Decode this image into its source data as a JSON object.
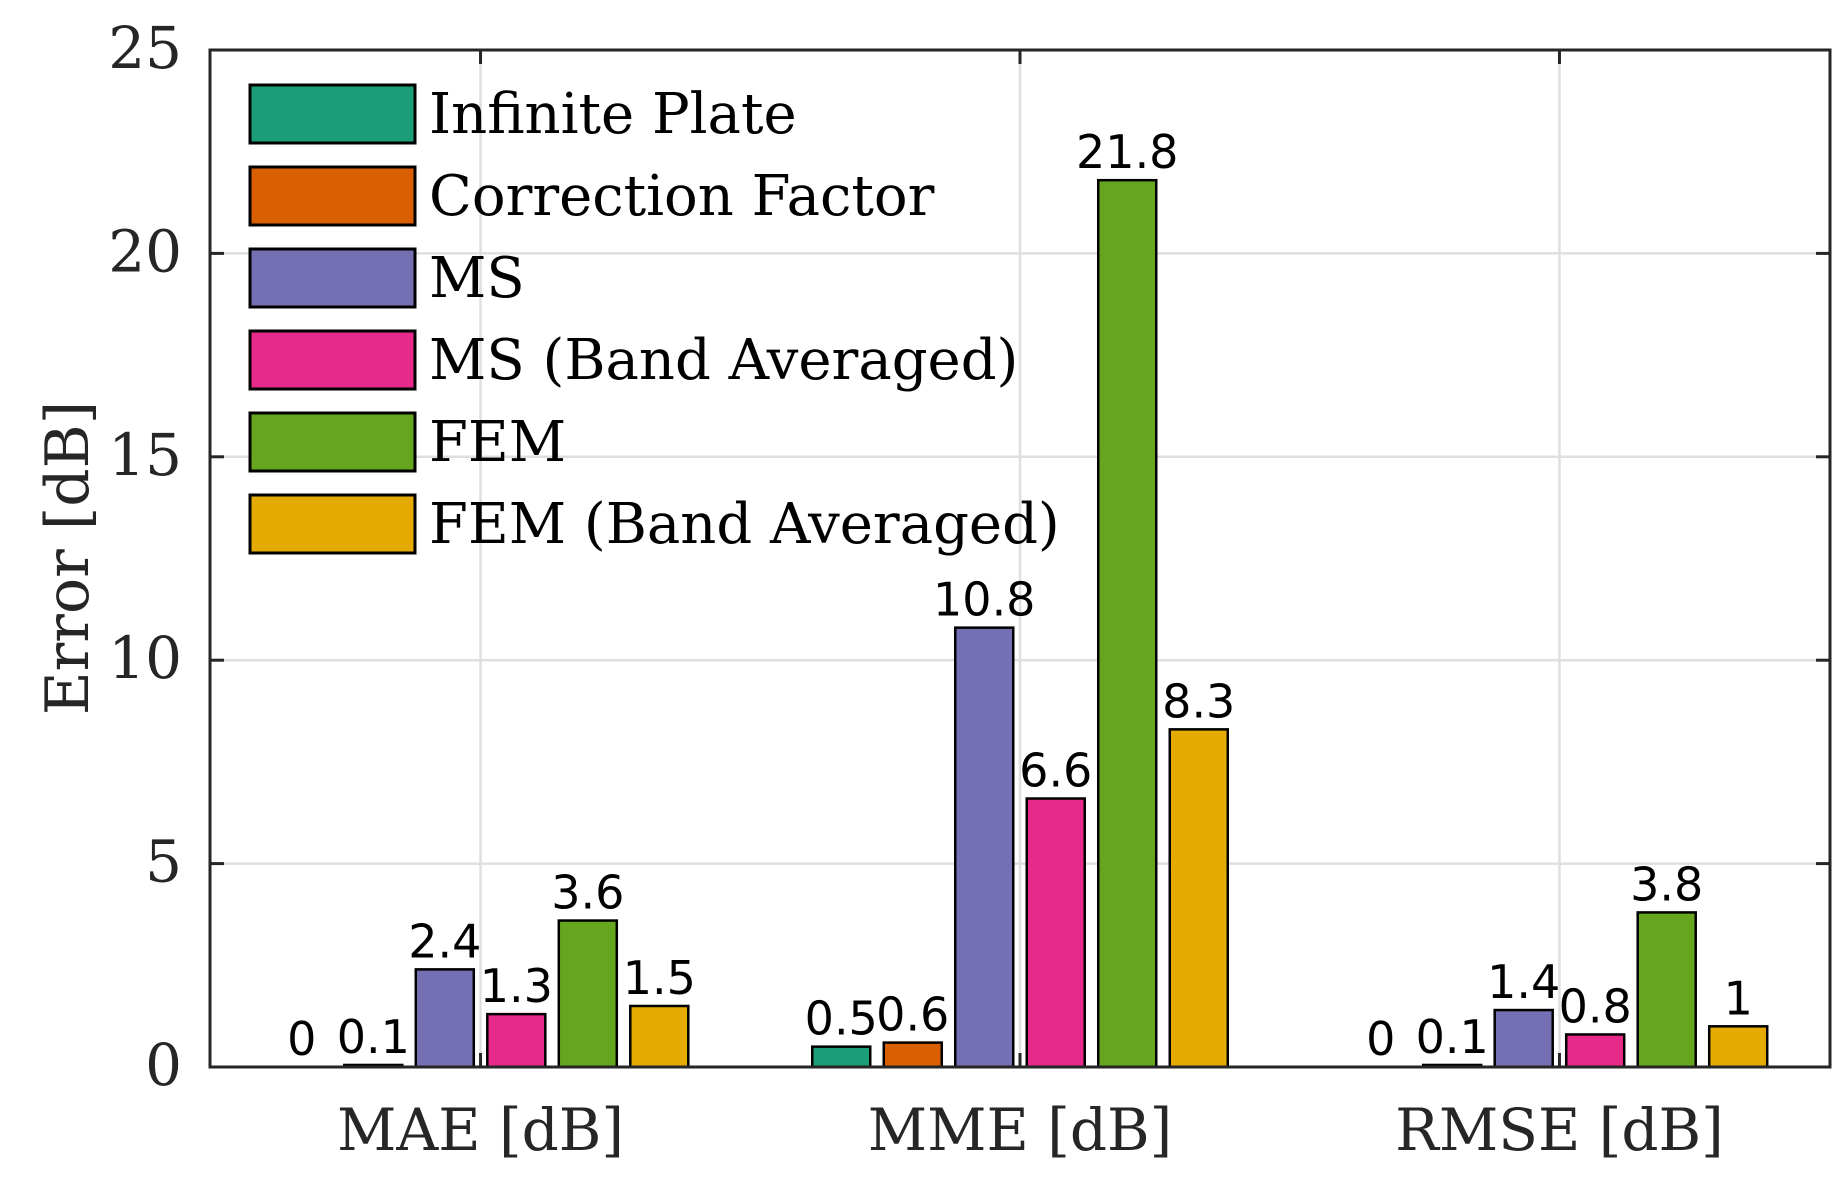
{
  "chart_data": {
    "type": "bar",
    "title": "",
    "xlabel": "",
    "ylabel": "Error [dB]",
    "ylim": [
      0,
      25
    ],
    "yticks": [
      "0",
      "5",
      "10",
      "15",
      "20",
      "25"
    ],
    "grid": true,
    "legend_position": "top-left",
    "categories": [
      "MAE [dB]",
      "MME [dB]",
      "RMSE [dB]"
    ],
    "series": [
      {
        "name": "Infinite Plate",
        "color": "#1b9e77",
        "values": [
          0.0,
          0.5,
          0.0
        ],
        "labels": [
          "0",
          "0.5",
          "0"
        ]
      },
      {
        "name": "Correction Factor",
        "color": "#d95f02",
        "values": [
          0.05,
          0.6,
          0.05
        ],
        "labels": [
          "0.1",
          "0.6",
          "0.1"
        ]
      },
      {
        "name": "MS",
        "color": "#7570b3",
        "values": [
          2.4,
          10.8,
          1.4
        ],
        "labels": [
          "2.4",
          "10.8",
          "1.4"
        ]
      },
      {
        "name": "MS (Band Averaged)",
        "color": "#e7298a",
        "values": [
          1.3,
          6.6,
          0.8
        ],
        "labels": [
          "1.3",
          "6.6",
          "0.8"
        ]
      },
      {
        "name": "FEM",
        "color": "#66a61e",
        "values": [
          3.6,
          21.8,
          3.8
        ],
        "labels": [
          "3.6",
          "21.8",
          "3.8"
        ]
      },
      {
        "name": "FEM (Band Averaged)",
        "color": "#e6ab02",
        "values": [
          1.5,
          8.3,
          1.0
        ],
        "labels": [
          "1.5",
          "8.3",
          "1"
        ]
      }
    ]
  }
}
